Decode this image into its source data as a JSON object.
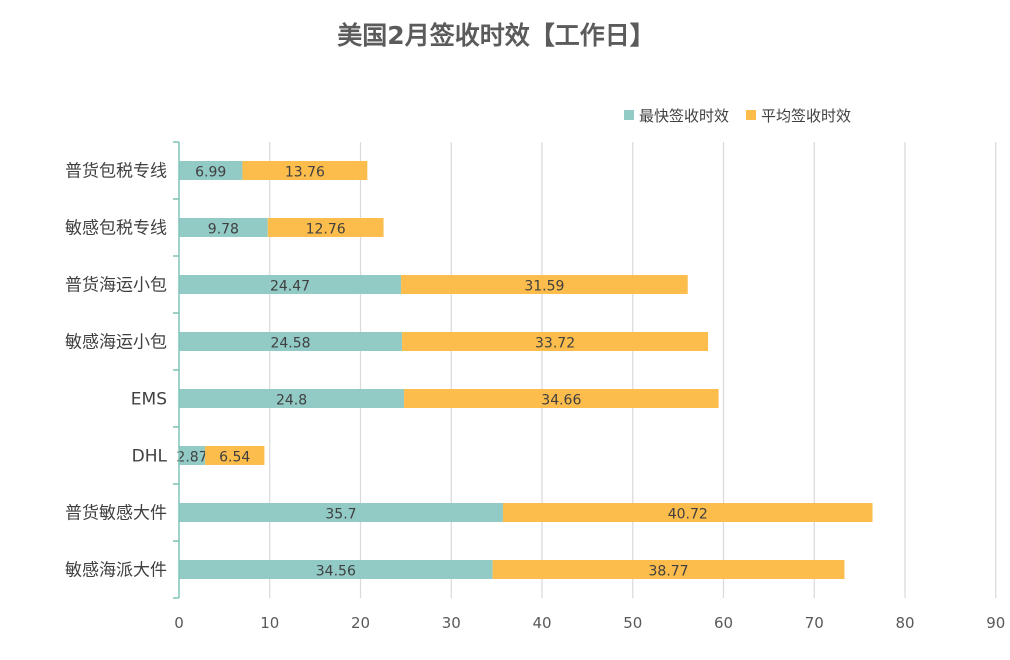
{
  "chart_data": {
    "type": "bar",
    "orientation": "horizontal",
    "stacked": true,
    "title": "美国2月签收时效【工作日】",
    "categories": [
      "普货包税专线",
      "敏感包税专线",
      "普货海运小包",
      "敏感海运小包",
      "EMS",
      "DHL",
      "普货敏感大件",
      "敏感海派大件"
    ],
    "series": [
      {
        "name": "最快签收时效",
        "color": "#92CAC6",
        "values": [
          6.99,
          9.78,
          24.47,
          24.58,
          24.8,
          2.87,
          35.7,
          34.56
        ]
      },
      {
        "name": "平均签收时效",
        "color": "#FDBD4C",
        "values": [
          13.76,
          12.76,
          31.59,
          33.72,
          34.66,
          6.54,
          40.72,
          38.77
        ]
      }
    ],
    "xlim": [
      0,
      90
    ],
    "xticks": [
      0,
      10,
      20,
      30,
      40,
      50,
      60,
      70,
      80,
      90
    ],
    "grid": true,
    "legend": "top-right",
    "axis_color": "#7FC4B8",
    "grid_color": "#D9D9D9"
  }
}
